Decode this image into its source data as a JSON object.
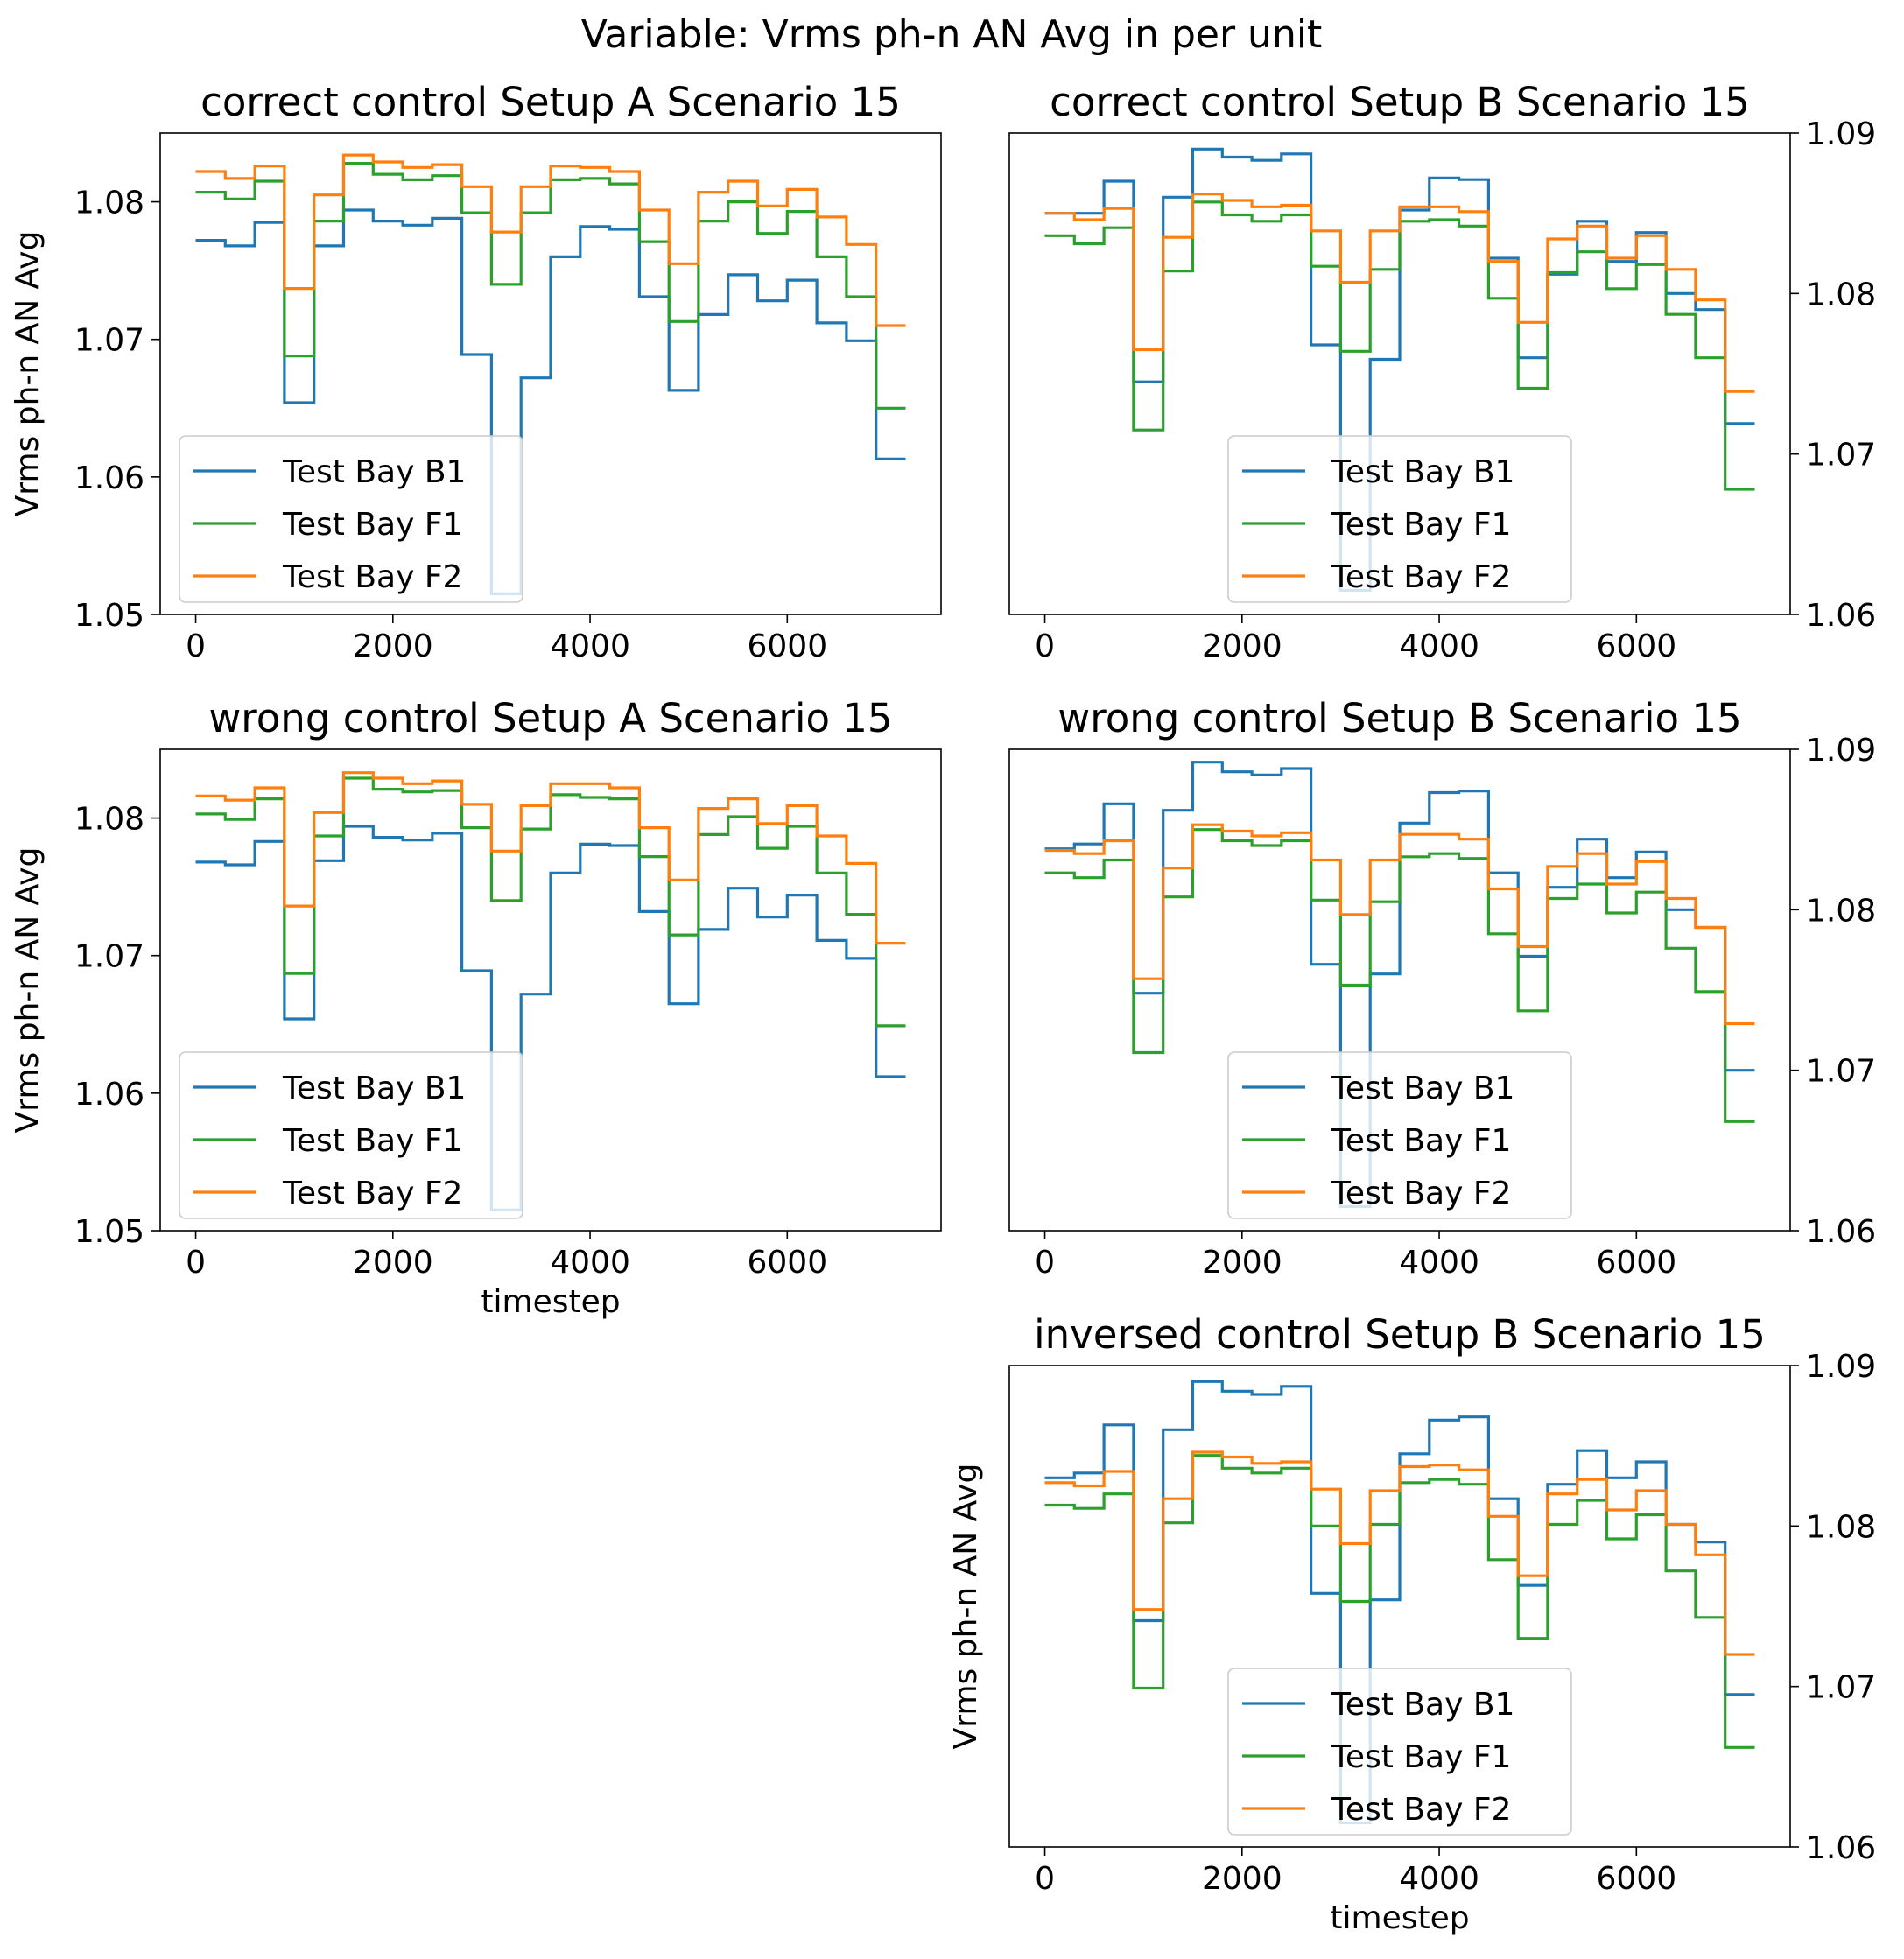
{
  "figure": {
    "suptitle": "Variable: Vrms ph-n AN Avg in per unit"
  },
  "series_colors": {
    "Test Bay B1": "#1f77b4",
    "Test Bay F1": "#2ca02c",
    "Test Bay F2": "#ff7f0e"
  },
  "chart_data": [
    {
      "type": "line",
      "title": "correct control Setup A Scenario 15",
      "xlabel": "",
      "ylabel": "Vrms ph-n AN Avg",
      "ylim": [
        1.05,
        1.085
      ],
      "yticks": [
        1.05,
        1.06,
        1.07,
        1.08
      ],
      "ytick_labels": [
        "1.05",
        "1.06",
        "1.07",
        "1.08"
      ],
      "xlim": [
        -360,
        7560
      ],
      "xticks": [
        0,
        2000,
        4000,
        6000
      ],
      "xtick_labels": [
        "0",
        "2000",
        "4000",
        "6000"
      ],
      "y_axis_side": "left",
      "legend_position": "lower-left",
      "step": "post",
      "x": [
        0,
        300,
        600,
        900,
        1200,
        1500,
        1800,
        2100,
        2400,
        2700,
        3000,
        3300,
        3600,
        3900,
        4200,
        4500,
        4800,
        5100,
        5400,
        5700,
        6000,
        6300,
        6600,
        6900,
        7200
      ],
      "series": [
        {
          "name": "Test Bay B1",
          "values": [
            1.0772,
            1.0768,
            1.0785,
            1.0654,
            1.0768,
            1.0794,
            1.0786,
            1.0783,
            1.0788,
            1.0689,
            1.0515,
            1.0672,
            1.076,
            1.0782,
            1.078,
            1.0731,
            1.0663,
            1.0718,
            1.0747,
            1.0728,
            1.0743,
            1.0712,
            1.0699,
            1.0613,
            1.0613
          ]
        },
        {
          "name": "Test Bay F1",
          "values": [
            1.0807,
            1.0802,
            1.0815,
            1.0688,
            1.0786,
            1.0828,
            1.082,
            1.0816,
            1.0819,
            1.0792,
            1.074,
            1.0792,
            1.0816,
            1.0817,
            1.0813,
            1.0771,
            1.0713,
            1.0786,
            1.08,
            1.0777,
            1.0793,
            1.076,
            1.0731,
            1.065,
            1.065
          ]
        },
        {
          "name": "Test Bay F2",
          "values": [
            1.0822,
            1.0817,
            1.0826,
            1.0737,
            1.0805,
            1.0834,
            1.0829,
            1.0825,
            1.0827,
            1.0811,
            1.0778,
            1.0811,
            1.0826,
            1.0825,
            1.0822,
            1.0794,
            1.0755,
            1.0807,
            1.0815,
            1.0797,
            1.0809,
            1.0789,
            1.0769,
            1.071,
            1.071
          ]
        }
      ]
    },
    {
      "type": "line",
      "title": "correct control Setup B Scenario 15",
      "xlabel": "",
      "ylabel": "",
      "ylim": [
        1.06,
        1.09
      ],
      "yticks": [
        1.06,
        1.07,
        1.08,
        1.09
      ],
      "ytick_labels": [
        "1.06",
        "1.07",
        "1.08",
        "1.09"
      ],
      "xlim": [
        -360,
        7560
      ],
      "xticks": [
        0,
        2000,
        4000,
        6000
      ],
      "xtick_labels": [
        "0",
        "2000",
        "4000",
        "6000"
      ],
      "y_axis_side": "right",
      "legend_position": "lower-center",
      "step": "post",
      "x": [
        0,
        300,
        600,
        900,
        1200,
        1500,
        1800,
        2100,
        2400,
        2700,
        3000,
        3300,
        3600,
        3900,
        4200,
        4500,
        4800,
        5100,
        5400,
        5700,
        6000,
        6300,
        6600,
        6900,
        7200
      ],
      "series": [
        {
          "name": "Test Bay B1",
          "values": [
            1.085,
            1.085,
            1.087,
            1.0745,
            1.086,
            1.089,
            1.0885,
            1.0883,
            1.0887,
            1.0768,
            1.0615,
            1.0759,
            1.0852,
            1.0872,
            1.0871,
            1.0822,
            1.076,
            1.0812,
            1.0845,
            1.082,
            1.0838,
            1.08,
            1.079,
            1.0719,
            1.0719
          ]
        },
        {
          "name": "Test Bay F1",
          "values": [
            1.0836,
            1.0831,
            1.0841,
            1.0715,
            1.0814,
            1.0857,
            1.0849,
            1.0845,
            1.0849,
            1.0817,
            1.0764,
            1.0815,
            1.0845,
            1.0846,
            1.0842,
            1.0797,
            1.0741,
            1.0813,
            1.0826,
            1.0803,
            1.0818,
            1.0787,
            1.076,
            1.0678,
            1.0678
          ]
        },
        {
          "name": "Test Bay F2",
          "values": [
            1.085,
            1.0846,
            1.0853,
            1.0765,
            1.0835,
            1.0862,
            1.0858,
            1.0854,
            1.0855,
            1.0839,
            1.0807,
            1.0839,
            1.0854,
            1.0854,
            1.0851,
            1.082,
            1.0782,
            1.0834,
            1.0842,
            1.0822,
            1.0836,
            1.0815,
            1.0796,
            1.0739,
            1.0739
          ]
        }
      ]
    },
    {
      "type": "line",
      "title": "wrong control Setup A Scenario 15",
      "xlabel": "timestep",
      "ylabel": "Vrms ph-n AN Avg",
      "ylim": [
        1.05,
        1.085
      ],
      "yticks": [
        1.05,
        1.06,
        1.07,
        1.08
      ],
      "ytick_labels": [
        "1.05",
        "1.06",
        "1.07",
        "1.08"
      ],
      "xlim": [
        -360,
        7560
      ],
      "xticks": [
        0,
        2000,
        4000,
        6000
      ],
      "xtick_labels": [
        "0",
        "2000",
        "4000",
        "6000"
      ],
      "y_axis_side": "left",
      "legend_position": "lower-left",
      "step": "post",
      "x": [
        0,
        300,
        600,
        900,
        1200,
        1500,
        1800,
        2100,
        2400,
        2700,
        3000,
        3300,
        3600,
        3900,
        4200,
        4500,
        4800,
        5100,
        5400,
        5700,
        6000,
        6300,
        6600,
        6900,
        7200
      ],
      "series": [
        {
          "name": "Test Bay B1",
          "values": [
            1.0768,
            1.0766,
            1.0783,
            1.0654,
            1.0769,
            1.0794,
            1.0786,
            1.0784,
            1.0789,
            1.0689,
            1.0515,
            1.0672,
            1.076,
            1.0781,
            1.078,
            1.0732,
            1.0665,
            1.0719,
            1.0749,
            1.0728,
            1.0744,
            1.0711,
            1.0698,
            1.0612,
            1.0612
          ]
        },
        {
          "name": "Test Bay F1",
          "values": [
            1.0803,
            1.0799,
            1.0814,
            1.0687,
            1.0787,
            1.0829,
            1.0821,
            1.0819,
            1.082,
            1.0793,
            1.074,
            1.0792,
            1.0817,
            1.0815,
            1.0814,
            1.0772,
            1.0715,
            1.0788,
            1.0801,
            1.0778,
            1.0794,
            1.076,
            1.073,
            1.0649,
            1.0649
          ]
        },
        {
          "name": "Test Bay F2",
          "values": [
            1.0816,
            1.0813,
            1.0822,
            1.0736,
            1.0804,
            1.0833,
            1.0829,
            1.0825,
            1.0827,
            1.081,
            1.0776,
            1.0809,
            1.0825,
            1.0825,
            1.0822,
            1.0793,
            1.0755,
            1.0807,
            1.0814,
            1.0796,
            1.0809,
            1.0787,
            1.0767,
            1.0709,
            1.0709
          ]
        }
      ]
    },
    {
      "type": "line",
      "title": "wrong control Setup B Scenario 15",
      "xlabel": "",
      "ylabel": "",
      "ylim": [
        1.06,
        1.09
      ],
      "yticks": [
        1.06,
        1.07,
        1.08,
        1.09
      ],
      "ytick_labels": [
        "1.06",
        "1.07",
        "1.08",
        "1.09"
      ],
      "xlim": [
        -360,
        7560
      ],
      "xticks": [
        0,
        2000,
        4000,
        6000
      ],
      "xtick_labels": [
        "0",
        "2000",
        "4000",
        "6000"
      ],
      "y_axis_side": "right",
      "legend_position": "lower-center",
      "step": "post",
      "x": [
        0,
        300,
        600,
        900,
        1200,
        1500,
        1800,
        2100,
        2400,
        2700,
        3000,
        3300,
        3600,
        3900,
        4200,
        4500,
        4800,
        5100,
        5400,
        5700,
        6000,
        6300,
        6600,
        6900,
        7200
      ],
      "series": [
        {
          "name": "Test Bay B1",
          "values": [
            1.0838,
            1.0841,
            1.0866,
            1.0748,
            1.0862,
            1.0892,
            1.0886,
            1.0884,
            1.0888,
            1.0766,
            1.0615,
            1.076,
            1.0854,
            1.0873,
            1.0874,
            1.0823,
            1.0771,
            1.0814,
            1.0844,
            1.082,
            1.0836,
            1.08,
            1.0789,
            1.07,
            1.07
          ]
        },
        {
          "name": "Test Bay F1",
          "values": [
            1.0823,
            1.082,
            1.0831,
            1.0711,
            1.0808,
            1.085,
            1.0843,
            1.084,
            1.0843,
            1.0806,
            1.0753,
            1.0805,
            1.0833,
            1.0835,
            1.0832,
            1.0785,
            1.0737,
            1.0807,
            1.0816,
            1.0798,
            1.0811,
            1.0776,
            1.0749,
            1.0668,
            1.0668
          ]
        },
        {
          "name": "Test Bay F2",
          "values": [
            1.0837,
            1.0835,
            1.0843,
            1.0757,
            1.0826,
            1.0853,
            1.0849,
            1.0846,
            1.0848,
            1.0831,
            1.0797,
            1.0831,
            1.0847,
            1.0847,
            1.0844,
            1.0813,
            1.0777,
            1.0827,
            1.0835,
            1.0816,
            1.083,
            1.0807,
            1.0789,
            1.0729,
            1.0729
          ]
        }
      ]
    },
    {
      "type": "line",
      "title": "inversed control Setup B Scenario 15",
      "xlabel": "timestep",
      "ylabel": "Vrms ph-n AN Avg",
      "ylim": [
        1.06,
        1.09
      ],
      "yticks": [
        1.06,
        1.07,
        1.08,
        1.09
      ],
      "ytick_labels": [
        "1.06",
        "1.07",
        "1.08",
        "1.09"
      ],
      "xlim": [
        -360,
        7560
      ],
      "xticks": [
        0,
        2000,
        4000,
        6000
      ],
      "xtick_labels": [
        "0",
        "2000",
        "4000",
        "6000"
      ],
      "y_axis_side": "right",
      "legend_position": "lower-center",
      "step": "post",
      "x": [
        0,
        300,
        600,
        900,
        1200,
        1500,
        1800,
        2100,
        2400,
        2700,
        3000,
        3300,
        3600,
        3900,
        4200,
        4500,
        4800,
        5100,
        5400,
        5700,
        6000,
        6300,
        6600,
        6900,
        7200
      ],
      "series": [
        {
          "name": "Test Bay B1",
          "values": [
            1.083,
            1.0833,
            1.0863,
            1.0741,
            1.086,
            1.089,
            1.0884,
            1.0882,
            1.0887,
            1.0758,
            1.0615,
            1.0754,
            1.0845,
            1.0866,
            1.0868,
            1.0817,
            1.0763,
            1.0826,
            1.0847,
            1.083,
            1.084,
            1.0801,
            1.079,
            1.0695,
            1.0695
          ]
        },
        {
          "name": "Test Bay F1",
          "values": [
            1.0813,
            1.0811,
            1.082,
            1.0699,
            1.0802,
            1.0844,
            1.0836,
            1.0833,
            1.0836,
            1.08,
            1.0753,
            1.0801,
            1.0827,
            1.0829,
            1.0826,
            1.0779,
            1.073,
            1.0801,
            1.0816,
            1.0792,
            1.0807,
            1.0772,
            1.0743,
            1.0662,
            1.0662
          ]
        },
        {
          "name": "Test Bay F2",
          "values": [
            1.0827,
            1.0825,
            1.0834,
            1.0748,
            1.0817,
            1.0846,
            1.0843,
            1.0839,
            1.084,
            1.0823,
            1.0789,
            1.0822,
            1.0837,
            1.0838,
            1.0835,
            1.0806,
            1.0769,
            1.082,
            1.0829,
            1.081,
            1.0822,
            1.0801,
            1.0782,
            1.072,
            1.072
          ]
        }
      ]
    }
  ]
}
